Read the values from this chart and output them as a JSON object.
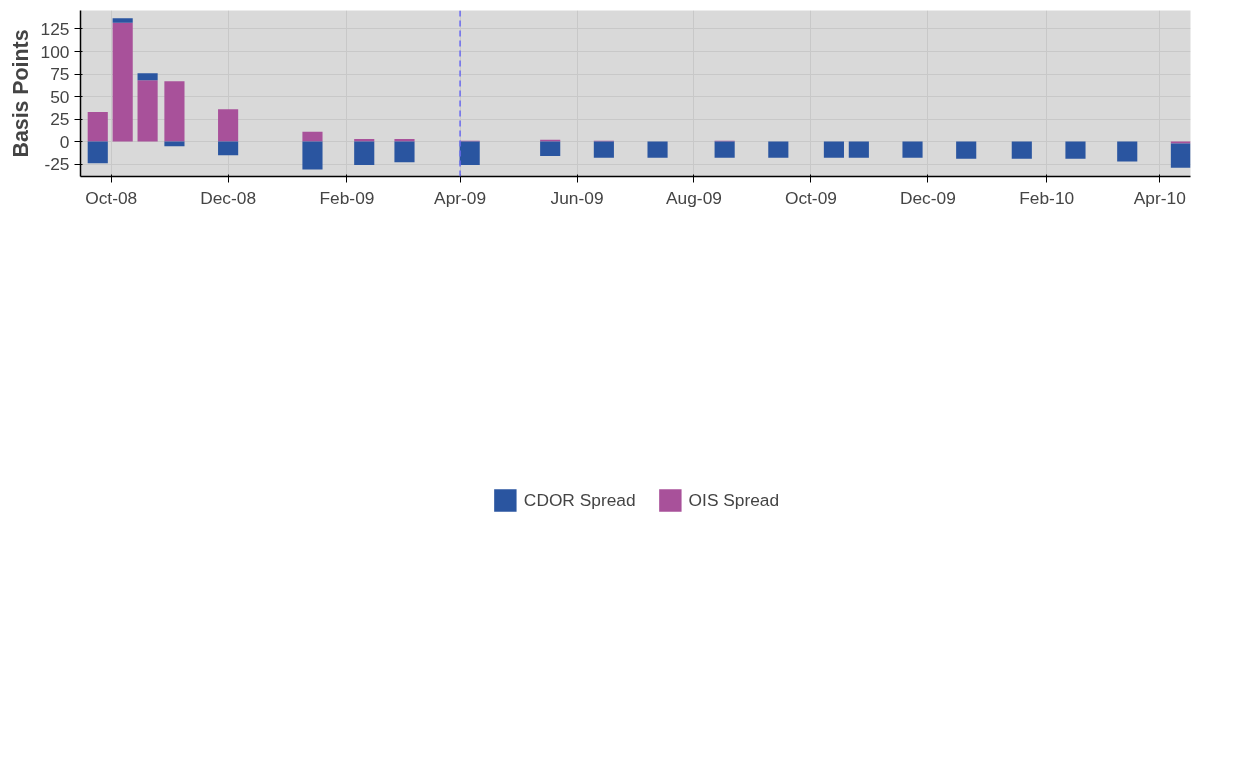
{
  "chart_data": {
    "type": "bar",
    "stacked": true,
    "ylabel": "Basis Points",
    "x": [
      "2008-09-24",
      "2008-10-07",
      "2008-10-20",
      "2008-11-03",
      "2008-12-01",
      "2009-01-14",
      "2009-02-10",
      "2009-03-03",
      "2009-04-06",
      "2009-05-18",
      "2009-06-15",
      "2009-07-13",
      "2009-08-17",
      "2009-09-14",
      "2009-10-13",
      "2009-10-26",
      "2009-11-23",
      "2009-12-21",
      "2010-01-19",
      "2010-02-16",
      "2010-03-15",
      "2010-04-12"
    ],
    "series": [
      {
        "name": "OIS Spread",
        "color": "#a8519a",
        "values": [
          33,
          132,
          68,
          67,
          36,
          11,
          3,
          3,
          1,
          2,
          1,
          0,
          1,
          0,
          0,
          0,
          0,
          0,
          0,
          0,
          0,
          -2
        ]
      },
      {
        "name": "CDOR Spread",
        "color": "#2a55a0",
        "values": [
          -24,
          5,
          8,
          -5,
          -15,
          -31,
          -26,
          -23,
          -26,
          -16,
          -18,
          -18,
          -18,
          -18,
          -18,
          -18,
          -18,
          -19,
          -19,
          -19,
          -22,
          -27
        ]
      }
    ],
    "xlim": [
      "2008-09-15",
      "2010-04-17"
    ],
    "xticks": [
      {
        "value": "2008-10-01",
        "label": "Oct-08"
      },
      {
        "value": "2008-12-01",
        "label": "Dec-08"
      },
      {
        "value": "2009-02-01",
        "label": "Feb-09"
      },
      {
        "value": "2009-04-01",
        "label": "Apr-09"
      },
      {
        "value": "2009-06-01",
        "label": "Jun-09"
      },
      {
        "value": "2009-08-01",
        "label": "Aug-09"
      },
      {
        "value": "2009-10-01",
        "label": "Oct-09"
      },
      {
        "value": "2009-12-01",
        "label": "Dec-09"
      },
      {
        "value": "2010-02-01",
        "label": "Feb-10"
      },
      {
        "value": "2010-04-01",
        "label": "Apr-10"
      }
    ],
    "ylim": [
      -38.7,
      145.5
    ],
    "yticks": [
      -25,
      0,
      25,
      50,
      75,
      100,
      125
    ],
    "ref_lines": [
      {
        "axis": "x",
        "value": "2009-04-01",
        "color": "#6a6af0",
        "line_style": "dashed"
      }
    ],
    "grid": true,
    "legend": "bottom"
  }
}
